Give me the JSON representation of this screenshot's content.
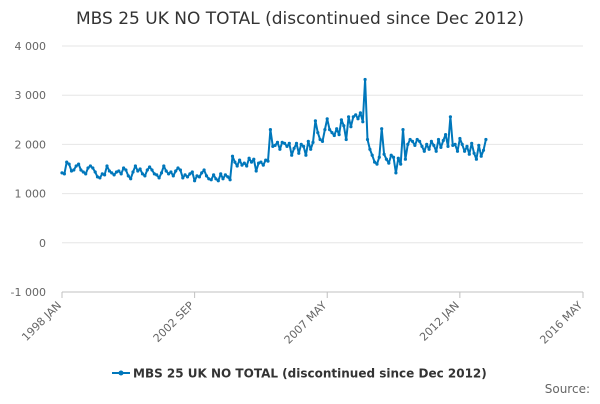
{
  "chart_data": {
    "type": "line",
    "title": "MBS 25 UK NO TOTAL (discontinued since Dec 2012)",
    "source_label": "Source:",
    "xlabel": "",
    "ylabel": "",
    "ylim": [
      -1000,
      4000
    ],
    "y_ticks": [
      {
        "value": -1000,
        "label": "-1 000"
      },
      {
        "value": 0,
        "label": "0"
      },
      {
        "value": 1000,
        "label": "1 000"
      },
      {
        "value": 2000,
        "label": "2 000"
      },
      {
        "value": 3000,
        "label": "3 000"
      },
      {
        "value": 4000,
        "label": "4 000"
      }
    ],
    "x_axis": {
      "min": "1998-01",
      "max": "2016-05"
    },
    "x_ticks": [
      {
        "value": "1998-01",
        "label": "1998 JAN"
      },
      {
        "value": "2002-09",
        "label": "2002 SEP"
      },
      {
        "value": "2007-05",
        "label": "2007 MAY"
      },
      {
        "value": "2012-01",
        "label": "2012 JAN"
      },
      {
        "value": "2016-05",
        "label": "2016 MAY"
      }
    ],
    "grid": true,
    "legend": {
      "position": "bottom"
    },
    "colors": {
      "series": "#0077bb",
      "grid": "#e6e6e6",
      "axis": "#c0c0c0",
      "text": "#666666",
      "title": "#333333"
    },
    "series": [
      {
        "name": "MBS 25 UK NO TOTAL (discontinued since Dec 2012)",
        "points": [
          [
            "1998-01",
            1420
          ],
          [
            "1998-02",
            1400
          ],
          [
            "1998-03",
            1640
          ],
          [
            "1998-04",
            1600
          ],
          [
            "1998-05",
            1460
          ],
          [
            "1998-06",
            1480
          ],
          [
            "1998-07",
            1560
          ],
          [
            "1998-08",
            1600
          ],
          [
            "1998-09",
            1480
          ],
          [
            "1998-10",
            1440
          ],
          [
            "1998-11",
            1400
          ],
          [
            "1998-12",
            1520
          ],
          [
            "1999-01",
            1560
          ],
          [
            "1999-02",
            1520
          ],
          [
            "1999-03",
            1440
          ],
          [
            "1999-04",
            1340
          ],
          [
            "1999-05",
            1320
          ],
          [
            "1999-06",
            1400
          ],
          [
            "1999-07",
            1380
          ],
          [
            "1999-08",
            1560
          ],
          [
            "1999-09",
            1460
          ],
          [
            "1999-10",
            1420
          ],
          [
            "1999-11",
            1380
          ],
          [
            "1999-12",
            1440
          ],
          [
            "2000-01",
            1460
          ],
          [
            "2000-02",
            1400
          ],
          [
            "2000-03",
            1520
          ],
          [
            "2000-04",
            1480
          ],
          [
            "2000-05",
            1360
          ],
          [
            "2000-06",
            1300
          ],
          [
            "2000-07",
            1440
          ],
          [
            "2000-08",
            1560
          ],
          [
            "2000-09",
            1460
          ],
          [
            "2000-10",
            1500
          ],
          [
            "2000-11",
            1400
          ],
          [
            "2000-12",
            1360
          ],
          [
            "2001-01",
            1480
          ],
          [
            "2001-02",
            1540
          ],
          [
            "2001-03",
            1480
          ],
          [
            "2001-04",
            1400
          ],
          [
            "2001-05",
            1380
          ],
          [
            "2001-06",
            1320
          ],
          [
            "2001-07",
            1420
          ],
          [
            "2001-08",
            1560
          ],
          [
            "2001-09",
            1460
          ],
          [
            "2001-10",
            1400
          ],
          [
            "2001-11",
            1440
          ],
          [
            "2001-12",
            1360
          ],
          [
            "2002-01",
            1460
          ],
          [
            "2002-02",
            1520
          ],
          [
            "2002-03",
            1480
          ],
          [
            "2002-04",
            1320
          ],
          [
            "2002-05",
            1380
          ],
          [
            "2002-06",
            1340
          ],
          [
            "2002-07",
            1400
          ],
          [
            "2002-08",
            1440
          ],
          [
            "2002-09",
            1260
          ],
          [
            "2002-10",
            1360
          ],
          [
            "2002-11",
            1340
          ],
          [
            "2002-12",
            1420
          ],
          [
            "2003-01",
            1480
          ],
          [
            "2003-02",
            1360
          ],
          [
            "2003-03",
            1300
          ],
          [
            "2003-04",
            1280
          ],
          [
            "2003-05",
            1380
          ],
          [
            "2003-06",
            1300
          ],
          [
            "2003-07",
            1260
          ],
          [
            "2003-08",
            1400
          ],
          [
            "2003-09",
            1300
          ],
          [
            "2003-10",
            1380
          ],
          [
            "2003-11",
            1340
          ],
          [
            "2003-12",
            1280
          ],
          [
            "2004-01",
            1760
          ],
          [
            "2004-02",
            1640
          ],
          [
            "2004-03",
            1560
          ],
          [
            "2004-04",
            1680
          ],
          [
            "2004-05",
            1580
          ],
          [
            "2004-06",
            1620
          ],
          [
            "2004-07",
            1560
          ],
          [
            "2004-08",
            1720
          ],
          [
            "2004-09",
            1640
          ],
          [
            "2004-10",
            1700
          ],
          [
            "2004-11",
            1460
          ],
          [
            "2004-12",
            1620
          ],
          [
            "2005-01",
            1640
          ],
          [
            "2005-02",
            1580
          ],
          [
            "2005-03",
            1680
          ],
          [
            "2005-04",
            1660
          ],
          [
            "2005-05",
            2300
          ],
          [
            "2005-06",
            1960
          ],
          [
            "2005-07",
            1980
          ],
          [
            "2005-08",
            2040
          ],
          [
            "2005-09",
            1900
          ],
          [
            "2005-10",
            2040
          ],
          [
            "2005-11",
            2020
          ],
          [
            "2005-12",
            1960
          ],
          [
            "2006-01",
            2020
          ],
          [
            "2006-02",
            1780
          ],
          [
            "2006-03",
            1920
          ],
          [
            "2006-04",
            2020
          ],
          [
            "2006-05",
            1820
          ],
          [
            "2006-06",
            2000
          ],
          [
            "2006-07",
            1960
          ],
          [
            "2006-08",
            1780
          ],
          [
            "2006-09",
            2060
          ],
          [
            "2006-10",
            1900
          ],
          [
            "2006-11",
            2040
          ],
          [
            "2006-12",
            2480
          ],
          [
            "2007-01",
            2240
          ],
          [
            "2007-02",
            2100
          ],
          [
            "2007-03",
            2060
          ],
          [
            "2007-04",
            2300
          ],
          [
            "2007-05",
            2520
          ],
          [
            "2007-06",
            2300
          ],
          [
            "2007-07",
            2240
          ],
          [
            "2007-08",
            2180
          ],
          [
            "2007-09",
            2320
          ],
          [
            "2007-10",
            2200
          ],
          [
            "2007-11",
            2500
          ],
          [
            "2007-12",
            2380
          ],
          [
            "2008-01",
            2100
          ],
          [
            "2008-02",
            2560
          ],
          [
            "2008-03",
            2360
          ],
          [
            "2008-04",
            2560
          ],
          [
            "2008-05",
            2600
          ],
          [
            "2008-06",
            2520
          ],
          [
            "2008-07",
            2640
          ],
          [
            "2008-08",
            2460
          ],
          [
            "2008-09",
            3320
          ],
          [
            "2008-10",
            2100
          ],
          [
            "2008-11",
            1900
          ],
          [
            "2008-12",
            1780
          ],
          [
            "2009-01",
            1640
          ],
          [
            "2009-02",
            1600
          ],
          [
            "2009-03",
            1740
          ],
          [
            "2009-04",
            2320
          ],
          [
            "2009-05",
            1800
          ],
          [
            "2009-06",
            1700
          ],
          [
            "2009-07",
            1620
          ],
          [
            "2009-08",
            1780
          ],
          [
            "2009-09",
            1740
          ],
          [
            "2009-10",
            1420
          ],
          [
            "2009-11",
            1720
          ],
          [
            "2009-12",
            1600
          ],
          [
            "2010-01",
            2300
          ],
          [
            "2010-02",
            1700
          ],
          [
            "2010-03",
            2000
          ],
          [
            "2010-04",
            2100
          ],
          [
            "2010-05",
            2060
          ],
          [
            "2010-06",
            1980
          ],
          [
            "2010-07",
            2100
          ],
          [
            "2010-08",
            2060
          ],
          [
            "2010-09",
            1960
          ],
          [
            "2010-10",
            1860
          ],
          [
            "2010-11",
            2000
          ],
          [
            "2010-12",
            1900
          ],
          [
            "2011-01",
            2060
          ],
          [
            "2011-02",
            1980
          ],
          [
            "2011-03",
            1860
          ],
          [
            "2011-04",
            2100
          ],
          [
            "2011-05",
            1940
          ],
          [
            "2011-06",
            2080
          ],
          [
            "2011-07",
            2200
          ],
          [
            "2011-08",
            1960
          ],
          [
            "2011-09",
            2560
          ],
          [
            "2011-10",
            1980
          ],
          [
            "2011-11",
            2000
          ],
          [
            "2011-12",
            1860
          ],
          [
            "2012-01",
            2120
          ],
          [
            "2012-02",
            2000
          ],
          [
            "2012-03",
            1860
          ],
          [
            "2012-04",
            1960
          ],
          [
            "2012-05",
            1800
          ],
          [
            "2012-06",
            2020
          ],
          [
            "2012-07",
            1820
          ],
          [
            "2012-08",
            1700
          ],
          [
            "2012-09",
            1980
          ],
          [
            "2012-10",
            1760
          ],
          [
            "2012-11",
            1880
          ],
          [
            "2012-12",
            2100
          ]
        ]
      }
    ]
  }
}
